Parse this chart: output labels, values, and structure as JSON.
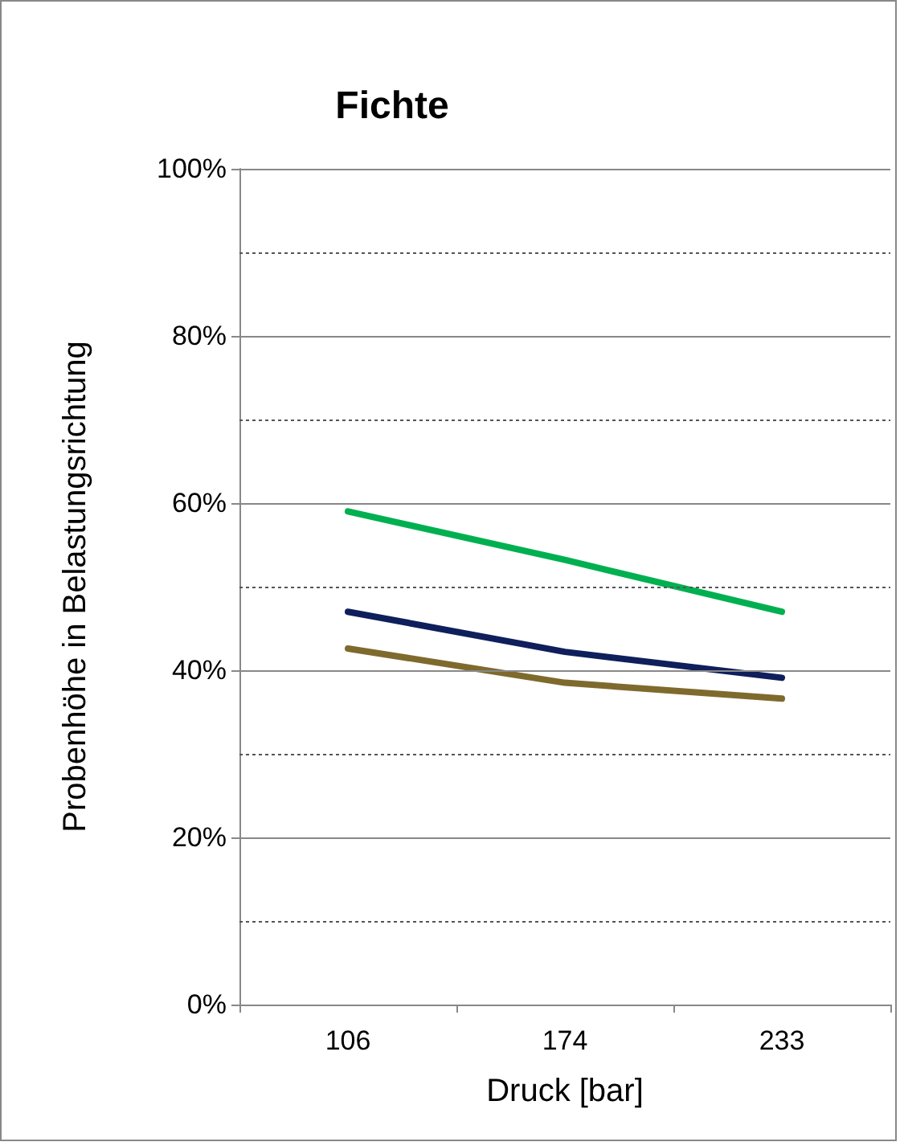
{
  "chart_data": {
    "type": "line",
    "title": "Fichte",
    "xlabel": "Druck [bar]",
    "ylabel": "Probenhöhe in Belastungsrichtung",
    "categories": [
      "106",
      "174",
      "233"
    ],
    "series": [
      {
        "color": "#00b050",
        "values": [
          59.0,
          53.2,
          47.0
        ]
      },
      {
        "color": "#0f1f5c",
        "values": [
          47.0,
          42.2,
          39.1
        ]
      },
      {
        "color": "#7f6a2e",
        "values": [
          42.6,
          38.5,
          36.6
        ]
      }
    ],
    "ylim": [
      0,
      100
    ],
    "yticks": [
      {
        "value": 0,
        "label": "0%"
      },
      {
        "value": 10,
        "label": null
      },
      {
        "value": 20,
        "label": "20%"
      },
      {
        "value": 30,
        "label": null
      },
      {
        "value": 40,
        "label": "40%"
      },
      {
        "value": 50,
        "label": null
      },
      {
        "value": 60,
        "label": "60%"
      },
      {
        "value": 70,
        "label": null
      },
      {
        "value": 80,
        "label": "80%"
      },
      {
        "value": 90,
        "label": null
      },
      {
        "value": 100,
        "label": "100%"
      }
    ],
    "grid": "y",
    "marker": "none",
    "line_style": "solid"
  }
}
